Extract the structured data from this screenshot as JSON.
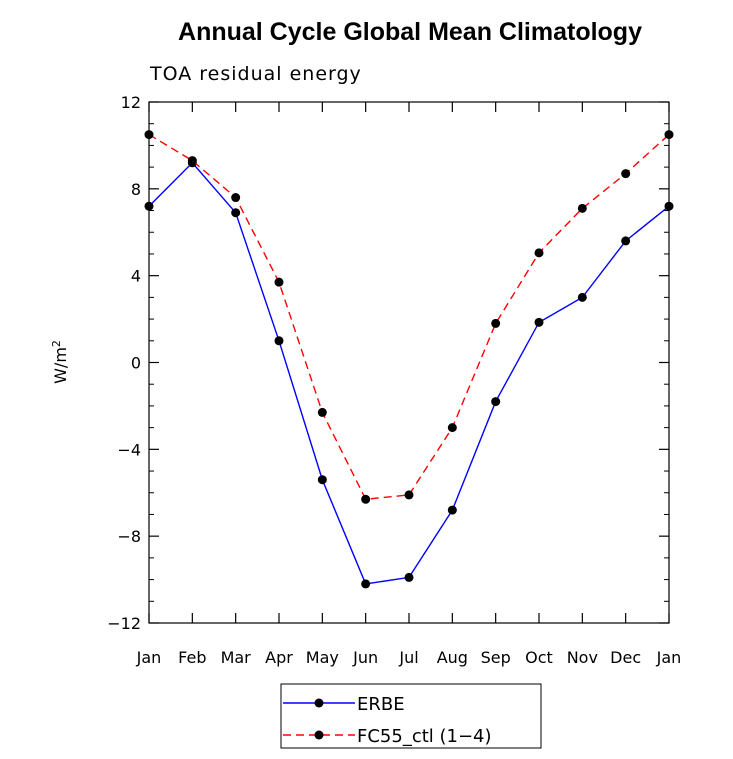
{
  "chart_data": {
    "type": "line",
    "title": "Annual Cycle Global Mean Climatology",
    "subtitle": "TOA residual energy",
    "ylabel_base": "W/m",
    "ylabel_sup": "2",
    "categories": [
      "Jan",
      "Feb",
      "Mar",
      "Apr",
      "May",
      "Jun",
      "Jul",
      "Aug",
      "Sep",
      "Oct",
      "Nov",
      "Dec",
      "Jan"
    ],
    "ylim": [
      -12,
      12
    ],
    "yticks": [
      12,
      8,
      4,
      0,
      -4,
      -8,
      -12
    ],
    "ytick_labels": [
      "12",
      "8",
      "4",
      "0",
      "−4",
      "−8",
      "−12"
    ],
    "series": [
      {
        "name": "ERBE",
        "color": "#0000ff",
        "dash": "solid",
        "values": [
          7.2,
          9.2,
          6.9,
          1.0,
          -5.4,
          -10.2,
          -9.9,
          -6.8,
          -1.8,
          1.85,
          3.0,
          5.6,
          7.2
        ]
      },
      {
        "name": "FC55_ctl (1−4)",
        "color": "#ff0000",
        "dash": "dashed",
        "values": [
          10.5,
          9.3,
          7.6,
          3.7,
          -2.3,
          -6.3,
          -6.1,
          -3.0,
          1.8,
          5.05,
          7.1,
          8.7,
          10.5
        ]
      }
    ],
    "legend_position": "bottom"
  }
}
